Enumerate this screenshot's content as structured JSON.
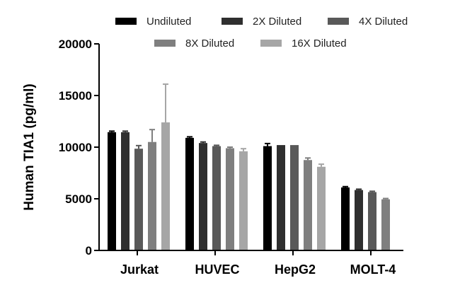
{
  "chart_data": {
    "type": "bar",
    "title": "",
    "xlabel": "",
    "ylabel": "Human TIA1 (pg/ml)",
    "ylim": [
      0,
      20000
    ],
    "yticks": [
      0,
      5000,
      10000,
      15000,
      20000
    ],
    "categories": [
      "Jurkat",
      "HUVEC",
      "HepG2",
      "MOLT-4"
    ],
    "legend_position": "top",
    "series": [
      {
        "name": "Undiluted",
        "color": "#000000",
        "values": [
          11450,
          10900,
          10100,
          6100
        ],
        "errors": [
          100,
          100,
          250,
          80
        ]
      },
      {
        "name": "2X Diluted",
        "color": "#2f2f2f",
        "values": [
          11450,
          10400,
          10200,
          5850
        ],
        "errors": [
          100,
          100,
          0,
          80
        ]
      },
      {
        "name": "4X Diluted",
        "color": "#595959",
        "values": [
          9850,
          10100,
          10200,
          5650
        ],
        "errors": [
          300,
          80,
          0,
          80
        ]
      },
      {
        "name": "8X Diluted",
        "color": "#7f7f7f",
        "values": [
          10500,
          9900,
          8750,
          4950
        ],
        "errors": [
          1200,
          100,
          200,
          80
        ]
      },
      {
        "name": "16X Diluted",
        "color": "#a6a6a6",
        "values": [
          12400,
          9600,
          8100,
          null
        ],
        "errors": [
          3700,
          250,
          250,
          null
        ]
      }
    ]
  }
}
